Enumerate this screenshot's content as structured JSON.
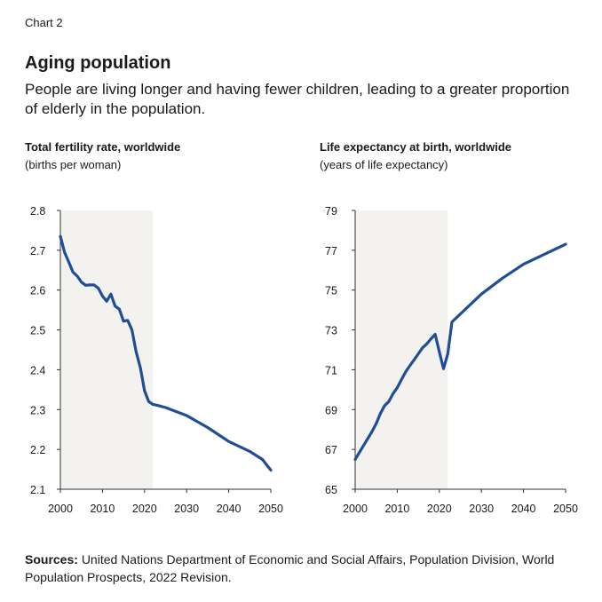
{
  "header": {
    "kicker": "Chart 2",
    "title": "Aging population",
    "subtitle": "People are living longer and having fewer children, leading to a greater proportion of elderly in the population."
  },
  "source": {
    "label": "Sources:",
    "text": "United Nations Department of Economic and Social Affairs, Population Division, World Population Prospects, 2022 Revision."
  },
  "colors": {
    "line": "#1f4e96",
    "shade": "#f4f2ee",
    "axis": "#333333"
  },
  "chart_data": [
    {
      "type": "line",
      "title": "Total fertility rate, worldwide",
      "unit": "(births per woman)",
      "xlabel": "",
      "ylabel": "",
      "xlim": [
        2000,
        2050
      ],
      "ylim": [
        2.1,
        2.8
      ],
      "xticks": [
        2000,
        2010,
        2020,
        2030,
        2040,
        2050
      ],
      "yticks": [
        2.1,
        2.2,
        2.3,
        2.4,
        2.5,
        2.6,
        2.7,
        2.8
      ],
      "ytick_labels": [
        "2.1",
        "2.2",
        "2.3",
        "2.4",
        "2.5",
        "2.6",
        "2.7",
        "2.8"
      ],
      "shaded_range": [
        2000,
        2022
      ],
      "series": [
        {
          "name": "Total fertility rate",
          "x": [
            2000,
            2001,
            2002,
            2003,
            2004,
            2005,
            2006,
            2007,
            2008,
            2009,
            2010,
            2011,
            2012,
            2013,
            2014,
            2015,
            2016,
            2017,
            2018,
            2019,
            2020,
            2021,
            2022,
            2023,
            2025,
            2030,
            2035,
            2040,
            2045,
            2048,
            2050
          ],
          "values": [
            2.735,
            2.695,
            2.67,
            2.645,
            2.635,
            2.62,
            2.612,
            2.613,
            2.613,
            2.605,
            2.585,
            2.572,
            2.59,
            2.56,
            2.552,
            2.522,
            2.524,
            2.5,
            2.445,
            2.405,
            2.347,
            2.32,
            2.313,
            2.311,
            2.305,
            2.285,
            2.255,
            2.22,
            2.195,
            2.175,
            2.148
          ]
        }
      ]
    },
    {
      "type": "line",
      "title": "Life expectancy at birth, worldwide",
      "unit": "(years of life expectancy)",
      "xlabel": "",
      "ylabel": "",
      "xlim": [
        2000,
        2050
      ],
      "ylim": [
        65,
        79
      ],
      "xticks": [
        2000,
        2010,
        2020,
        2030,
        2040,
        2050
      ],
      "yticks": [
        65,
        67,
        69,
        71,
        73,
        75,
        77,
        79
      ],
      "ytick_labels": [
        "65",
        "67",
        "69",
        "71",
        "73",
        "75",
        "77",
        "79"
      ],
      "shaded_range": [
        2000,
        2022
      ],
      "series": [
        {
          "name": "Life expectancy",
          "x": [
            2000,
            2002,
            2004,
            2005,
            2006,
            2007,
            2008,
            2009,
            2010,
            2011,
            2012,
            2013,
            2014,
            2015,
            2016,
            2017,
            2018,
            2019,
            2020,
            2021,
            2022,
            2023,
            2025,
            2030,
            2035,
            2040,
            2045,
            2050
          ],
          "values": [
            66.5,
            67.2,
            67.9,
            68.3,
            68.8,
            69.2,
            69.4,
            69.8,
            70.1,
            70.5,
            70.9,
            71.2,
            71.5,
            71.8,
            72.1,
            72.3,
            72.55,
            72.78,
            71.9,
            71.05,
            71.8,
            73.4,
            73.8,
            74.8,
            75.6,
            76.3,
            76.8,
            77.3
          ]
        }
      ]
    }
  ]
}
